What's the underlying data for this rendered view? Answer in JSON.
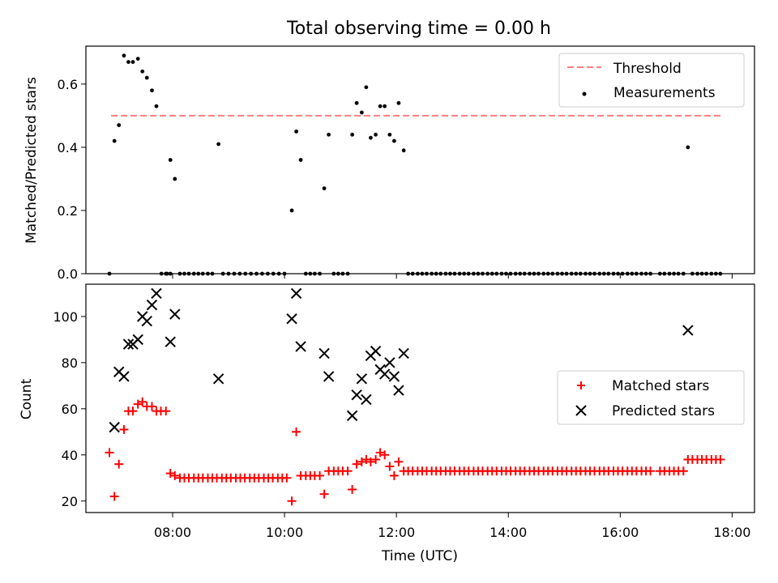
{
  "title": "Total observing time = 0.00 h",
  "colors": {
    "threshold": "#ff7f7f",
    "measurements": "#000000",
    "matched": "#ff0000",
    "predicted": "#000000"
  },
  "chart_data": [
    {
      "type": "scatter",
      "ylabel": "Matched/Predicted stars",
      "ylim": [
        0,
        0.72
      ],
      "yticks": [
        "0.0",
        "0.2",
        "0.4",
        "0.6"
      ],
      "xlim": [
        6.45,
        18.4
      ],
      "legend": {
        "placement": "top-right",
        "threshold_label": "Threshold",
        "measurements_label": "Measurements"
      },
      "threshold": {
        "y": 0.5,
        "x_range": [
          6.9,
          17.8
        ]
      },
      "series": [
        {
          "name": "Measurements",
          "x": [
            6.87,
            6.96,
            7.04,
            7.13,
            7.21,
            7.29,
            7.38,
            7.46,
            7.54,
            7.63,
            7.71,
            7.88,
            7.96,
            8.04,
            8.82,
            10.13,
            10.21,
            10.29,
            10.71,
            10.79,
            11.21,
            11.29,
            11.38,
            11.46,
            11.54,
            11.63,
            11.71,
            11.79,
            11.88,
            11.96,
            12.04,
            12.13,
            17.21
          ],
          "y": [
            0.0,
            0.42,
            0.47,
            0.69,
            0.67,
            0.67,
            0.68,
            0.64,
            0.62,
            0.58,
            0.53,
            0.0,
            0.36,
            0.3,
            0.41,
            0.2,
            0.45,
            0.36,
            0.27,
            0.44,
            0.44,
            0.54,
            0.51,
            0.59,
            0.43,
            0.44,
            0.53,
            0.53,
            0.44,
            0.42,
            0.54,
            0.39,
            0.4
          ]
        }
      ],
      "zero_points_x": [
        7.8,
        7.9,
        7.96,
        8.13,
        8.21,
        8.29,
        8.38,
        8.46,
        8.54,
        8.63,
        8.71,
        8.9,
        9.0,
        9.1,
        9.2,
        9.3,
        9.4,
        9.5,
        9.6,
        9.7,
        9.8,
        9.9,
        10.0,
        10.38,
        10.46,
        10.54,
        10.63,
        10.88,
        10.96,
        11.04,
        11.13,
        12.21,
        12.29,
        12.38,
        12.46,
        12.54,
        12.63,
        12.71,
        12.79,
        12.88,
        12.96,
        13.04,
        13.13,
        13.21,
        13.29,
        13.38,
        13.46,
        13.54,
        13.63,
        13.71,
        13.79,
        13.88,
        13.96,
        14.04,
        14.13,
        14.21,
        14.29,
        14.38,
        14.46,
        14.54,
        14.63,
        14.71,
        14.79,
        14.88,
        14.96,
        15.04,
        15.13,
        15.21,
        15.29,
        15.38,
        15.46,
        15.54,
        15.63,
        15.71,
        15.79,
        15.88,
        15.96,
        16.04,
        16.13,
        16.21,
        16.29,
        16.38,
        16.46,
        16.54,
        16.71,
        16.79,
        16.88,
        16.96,
        17.04,
        17.13,
        17.29,
        17.38,
        17.46,
        17.54,
        17.63,
        17.71,
        17.79
      ]
    },
    {
      "type": "scatter",
      "xlabel": "Time (UTC)",
      "ylabel": "Count",
      "ylim": [
        15,
        114
      ],
      "yticks": [
        "20",
        "40",
        "60",
        "80",
        "100"
      ],
      "xlim": [
        6.45,
        18.4
      ],
      "xticks": [
        "08:00",
        "10:00",
        "12:00",
        "14:00",
        "16:00",
        "18:00"
      ],
      "legend": {
        "placement": "center-right",
        "matched_label": "Matched stars",
        "predicted_label": "Predicted stars"
      },
      "series": [
        {
          "name": "Predicted stars",
          "x": [
            6.96,
            7.04,
            7.13,
            7.21,
            7.29,
            7.38,
            7.46,
            7.54,
            7.63,
            7.71,
            7.96,
            8.04,
            8.82,
            10.13,
            10.21,
            10.29,
            10.71,
            10.79,
            11.21,
            11.29,
            11.38,
            11.46,
            11.54,
            11.63,
            11.71,
            11.79,
            11.88,
            11.96,
            12.04,
            12.13,
            17.21
          ],
          "y": [
            52,
            76,
            74,
            88,
            88,
            90,
            100,
            98,
            105,
            110,
            89,
            101,
            73,
            99,
            110,
            87,
            84,
            74,
            57,
            66,
            73,
            64,
            83,
            85,
            77,
            75,
            80,
            74,
            68,
            84,
            94
          ]
        },
        {
          "name": "Matched stars",
          "x": [
            6.87,
            6.96,
            7.04,
            7.13,
            7.21,
            7.29,
            7.38,
            7.46,
            7.54,
            7.63,
            7.71,
            7.79,
            7.88,
            7.96,
            8.04,
            8.13,
            8.21,
            8.29,
            8.38,
            8.46,
            8.54,
            8.63,
            8.71,
            8.79,
            8.88,
            8.96,
            9.04,
            9.13,
            9.21,
            9.29,
            9.38,
            9.46,
            9.54,
            9.63,
            9.71,
            9.79,
            9.88,
            9.96,
            10.04,
            10.13,
            10.21,
            10.29,
            10.38,
            10.46,
            10.54,
            10.63,
            10.71,
            10.79,
            10.88,
            10.96,
            11.04,
            11.13,
            11.21,
            11.29,
            11.38,
            11.46,
            11.54,
            11.63,
            11.71,
            11.79,
            11.88,
            11.96,
            12.04,
            12.13,
            12.21,
            12.29,
            12.38,
            12.46,
            12.54,
            12.63,
            12.71,
            12.79,
            12.88,
            12.96,
            13.04,
            13.13,
            13.21,
            13.29,
            13.38,
            13.46,
            13.54,
            13.63,
            13.71,
            13.79,
            13.88,
            13.96,
            14.04,
            14.13,
            14.21,
            14.29,
            14.38,
            14.46,
            14.54,
            14.63,
            14.71,
            14.79,
            14.88,
            14.96,
            15.04,
            15.13,
            15.21,
            15.29,
            15.38,
            15.46,
            15.54,
            15.63,
            15.71,
            15.79,
            15.88,
            15.96,
            16.04,
            16.13,
            16.21,
            16.29,
            16.38,
            16.46,
            16.54,
            16.71,
            16.79,
            16.88,
            16.96,
            17.04,
            17.13,
            17.21,
            17.29,
            17.38,
            17.46,
            17.54,
            17.63,
            17.71,
            17.79
          ],
          "y": [
            41,
            22,
            36,
            51,
            59,
            59,
            62,
            63,
            61,
            61,
            59,
            59,
            59,
            32,
            31,
            30,
            30,
            30,
            30,
            30,
            30,
            30,
            30,
            30,
            30,
            30,
            30,
            30,
            30,
            30,
            30,
            30,
            30,
            30,
            30,
            30,
            30,
            30,
            30,
            20,
            50,
            31,
            31,
            31,
            31,
            31,
            23,
            33,
            33,
            33,
            33,
            33,
            25,
            36,
            37,
            38,
            37,
            38,
            41,
            40,
            35,
            31,
            37,
            33,
            33,
            33,
            33,
            33,
            33,
            33,
            33,
            33,
            33,
            33,
            33,
            33,
            33,
            33,
            33,
            33,
            33,
            33,
            33,
            33,
            33,
            33,
            33,
            33,
            33,
            33,
            33,
            33,
            33,
            33,
            33,
            33,
            33,
            33,
            33,
            33,
            33,
            33,
            33,
            33,
            33,
            33,
            33,
            33,
            33,
            33,
            33,
            33,
            33,
            33,
            33,
            33,
            33,
            33,
            33,
            33,
            33,
            33,
            33,
            38,
            38,
            38,
            38,
            38,
            38,
            38,
            38
          ]
        }
      ]
    }
  ]
}
